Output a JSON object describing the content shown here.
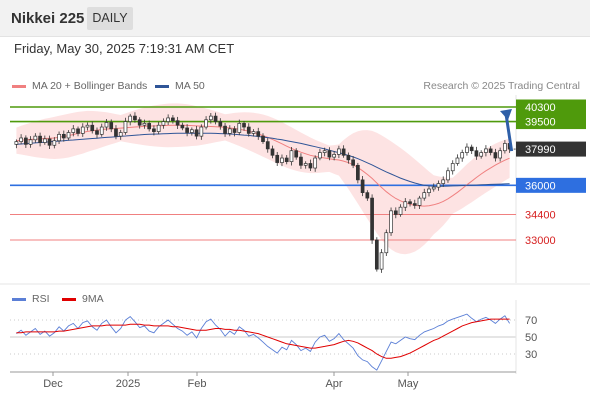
{
  "header": {
    "title": "Nikkei 225",
    "timeframe": "DAILY"
  },
  "datetime": "Friday, May 30, 2025 7:19:31 AM CET",
  "legend": {
    "main": [
      {
        "label": "MA 20 + Bollinger Bands",
        "color": "#f08080"
      },
      {
        "label": "MA 50",
        "color": "#2f5597"
      }
    ],
    "rsi": [
      {
        "label": "RSI",
        "color": "#5b7fd6"
      },
      {
        "label": "9MA",
        "color": "#e00000"
      }
    ]
  },
  "credit": "Research © 2025 Trading Central",
  "colors": {
    "resistance": "#4f9a0c",
    "support": "#2e6fe0",
    "support_weak": "#f08080",
    "arrow": "#2e5fa8",
    "last": "#333333"
  },
  "chart_data": [
    {
      "type": "candlestick",
      "title": "Nikkei 225",
      "x_labels": [
        "Dec",
        "2025",
        "Feb",
        "Apr",
        "May"
      ],
      "y_range": [
        31300,
        41000
      ],
      "last_price": {
        "label": "37990",
        "value": 37990
      },
      "levels": [
        {
          "label": "40300",
          "value": 40300,
          "kind": "resistance"
        },
        {
          "label": "39500",
          "value": 39500,
          "kind": "resistance"
        },
        {
          "label": "36000",
          "value": 36000,
          "kind": "support"
        },
        {
          "label": "34400",
          "value": 34400,
          "kind": "support_weak"
        },
        {
          "label": "33000",
          "value": 33000,
          "kind": "support_weak"
        }
      ],
      "closes": [
        38400,
        38600,
        38250,
        38500,
        38700,
        38350,
        38550,
        38200,
        38450,
        38800,
        38600,
        38900,
        39100,
        38850,
        39200,
        39300,
        39000,
        38800,
        39200,
        39450,
        39100,
        38700,
        38900,
        39500,
        39800,
        39600,
        39300,
        39400,
        39100,
        38950,
        39300,
        39500,
        39700,
        39550,
        39300,
        39150,
        38900,
        39050,
        38700,
        39200,
        39600,
        39800,
        39500,
        39250,
        38850,
        39100,
        38900,
        39400,
        39200,
        38850,
        38950,
        38700,
        38400,
        38000,
        37650,
        37250,
        37500,
        37300,
        37900,
        37550,
        37100,
        37200,
        36950,
        37500,
        37800,
        37900,
        37550,
        37700,
        38000,
        37650,
        37400,
        37100,
        36300,
        35600,
        35300,
        33000,
        31400,
        32300,
        33400,
        34600,
        34400,
        34800,
        35100,
        35000,
        34900,
        35300,
        35600,
        35800,
        35900,
        36100,
        36300,
        36800,
        37200,
        37500,
        37800,
        38100,
        37900,
        37600,
        37800,
        38000,
        37800,
        37500,
        37900,
        38300,
        37990
      ],
      "ma20": [
        38450,
        38480,
        38500,
        38520,
        38530,
        38550,
        38570,
        38580,
        38600,
        38640,
        38680,
        38730,
        38790,
        38850,
        38900,
        38960,
        39000,
        39030,
        39060,
        39090,
        39110,
        39120,
        39140,
        39160,
        39180,
        39200,
        39220,
        39240,
        39250,
        39260,
        39270,
        39280,
        39290,
        39300,
        39300,
        39300,
        39290,
        39280,
        39260,
        39250,
        39240,
        39230,
        39220,
        39200,
        39180,
        39150,
        39120,
        39080,
        39030,
        38970,
        38900,
        38820,
        38730,
        38630,
        38520,
        38400,
        38280,
        38150,
        38030,
        37920,
        37820,
        37730,
        37650,
        37590,
        37540,
        37500,
        37460,
        37420,
        37390,
        37330,
        37250,
        37130,
        36980,
        36800,
        36600,
        36380,
        36130,
        35880,
        35650,
        35450,
        35280,
        35150,
        35040,
        34960,
        34900,
        34870,
        34860,
        34880,
        34930,
        35010,
        35120,
        35260,
        35430,
        35620,
        35820,
        36030,
        36230,
        36430,
        36620,
        36800,
        36960,
        37110,
        37250,
        37380,
        37490
      ],
      "ma50": [
        38250,
        38270,
        38290,
        38310,
        38330,
        38350,
        38370,
        38390,
        38410,
        38430,
        38450,
        38470,
        38490,
        38510,
        38530,
        38550,
        38570,
        38590,
        38610,
        38630,
        38650,
        38670,
        38690,
        38710,
        38730,
        38750,
        38770,
        38790,
        38800,
        38810,
        38820,
        38830,
        38840,
        38850,
        38860,
        38860,
        38860,
        38860,
        38860,
        38860,
        38860,
        38860,
        38850,
        38840,
        38830,
        38820,
        38800,
        38780,
        38760,
        38740,
        38710,
        38680,
        38650,
        38620,
        38580,
        38540,
        38500,
        38450,
        38400,
        38350,
        38300,
        38240,
        38180,
        38120,
        38060,
        38000,
        37930,
        37860,
        37790,
        37720,
        37640,
        37560,
        37460,
        37350,
        37240,
        37120,
        36990,
        36860,
        36740,
        36620,
        36510,
        36400,
        36300,
        36210,
        36130,
        36060,
        36010,
        35970,
        35950,
        35940,
        35950,
        35960,
        35970,
        35980,
        35990,
        36000,
        36010,
        36020,
        36030,
        36040,
        36050,
        36060,
        36070,
        36080,
        36090
      ],
      "rsi": [
        54,
        58,
        52,
        56,
        60,
        53,
        57,
        51,
        55,
        62,
        57,
        63,
        66,
        60,
        67,
        69,
        62,
        58,
        66,
        70,
        62,
        55,
        60,
        70,
        74,
        68,
        61,
        63,
        57,
        55,
        62,
        66,
        70,
        65,
        60,
        57,
        52,
        56,
        49,
        60,
        68,
        71,
        64,
        59,
        51,
        57,
        53,
        62,
        58,
        51,
        53,
        49,
        44,
        39,
        35,
        31,
        38,
        35,
        46,
        41,
        34,
        37,
        33,
        44,
        50,
        52,
        45,
        48,
        54,
        47,
        42,
        37,
        28,
        23,
        21,
        15,
        11,
        22,
        33,
        44,
        42,
        46,
        50,
        48,
        47,
        52,
        56,
        58,
        60,
        63,
        65,
        69,
        71,
        73,
        75,
        77,
        72,
        68,
        71,
        73,
        70,
        66,
        71,
        75,
        66
      ],
      "rsi_ma": [
        55,
        55,
        56,
        56,
        56,
        56,
        56,
        56,
        56,
        57,
        57,
        58,
        59,
        60,
        61,
        62,
        63,
        63,
        63,
        64,
        64,
        64,
        64,
        64,
        65,
        65,
        65,
        64,
        64,
        63,
        63,
        63,
        63,
        62,
        62,
        61,
        60,
        59,
        58,
        58,
        58,
        59,
        60,
        60,
        59,
        59,
        58,
        58,
        57,
        56,
        55,
        54,
        52,
        50,
        48,
        46,
        44,
        42,
        41,
        40,
        39,
        38,
        37,
        37,
        38,
        39,
        40,
        41,
        43,
        45,
        46,
        45,
        43,
        40,
        37,
        34,
        30,
        27,
        25,
        25,
        26,
        27,
        29,
        31,
        34,
        37,
        40,
        43,
        46,
        48,
        51,
        54,
        57,
        60,
        63,
        65,
        67,
        68,
        69,
        70,
        71,
        71,
        71,
        71,
        71
      ],
      "rsi_ticks": [
        "70",
        "50",
        "30"
      ]
    }
  ]
}
